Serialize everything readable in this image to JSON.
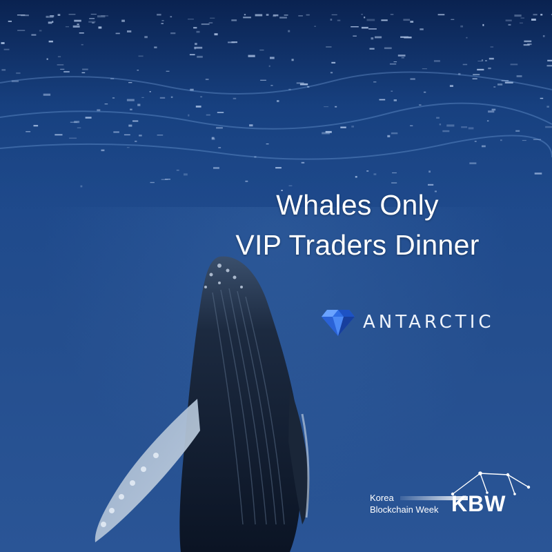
{
  "headline": {
    "line1": "Whales Only",
    "line2": "VIP Traders Dinner"
  },
  "sponsor_logo": {
    "name": "ANTARCTIC",
    "icon": "diamond-icon",
    "color": "#3d7ff0"
  },
  "event_logo": {
    "line1": "Korea",
    "line2": "Blockchain Week",
    "mark": "KBW",
    "icon": "constellation-icon"
  },
  "colors": {
    "ocean_deep": "#0f2f66",
    "ocean_mid": "#1f4a8c",
    "text": "#ffffff"
  }
}
